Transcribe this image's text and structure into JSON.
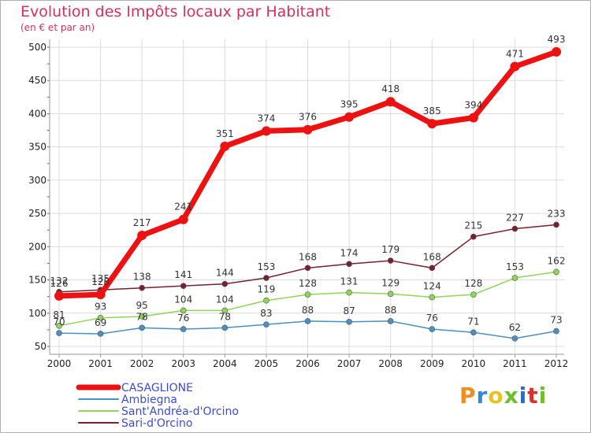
{
  "chart_data": {
    "type": "line",
    "title": "Evolution des Impôts locaux par Habitant",
    "subtitle": "(en € et par an)",
    "categories": [
      "2000",
      "2001",
      "2002",
      "2003",
      "2004",
      "2005",
      "2006",
      "2007",
      "2008",
      "2009",
      "2010",
      "2011",
      "2012"
    ],
    "ylim": [
      50,
      500
    ],
    "yticks": [
      50,
      100,
      150,
      200,
      250,
      300,
      350,
      400,
      450,
      500
    ],
    "grid": true,
    "legend_position": "bottom-left",
    "series": [
      {
        "name": "CASAGLIONE",
        "color": "#ee1111",
        "values": [
          126,
          128,
          217,
          241,
          351,
          374,
          376,
          395,
          418,
          385,
          394,
          471,
          493
        ]
      },
      {
        "name": "Ambiegna",
        "color": "#4a90c2",
        "values": [
          70,
          69,
          78,
          76,
          78,
          83,
          88,
          87,
          88,
          76,
          71,
          62,
          73
        ]
      },
      {
        "name": "Sant'Andréa-d'Orcino",
        "color": "#8ed656",
        "values": [
          81,
          93,
          95,
          104,
          104,
          119,
          128,
          131,
          129,
          124,
          128,
          153,
          162
        ]
      },
      {
        "name": "Sari-d'Orcino",
        "color": "#7a1f2b",
        "values": [
          132,
          135,
          138,
          141,
          144,
          153,
          168,
          174,
          179,
          168,
          215,
          227,
          233
        ]
      }
    ]
  },
  "brand": {
    "letters": [
      "P",
      "r",
      "o",
      "x",
      "i",
      "t",
      "i"
    ]
  }
}
